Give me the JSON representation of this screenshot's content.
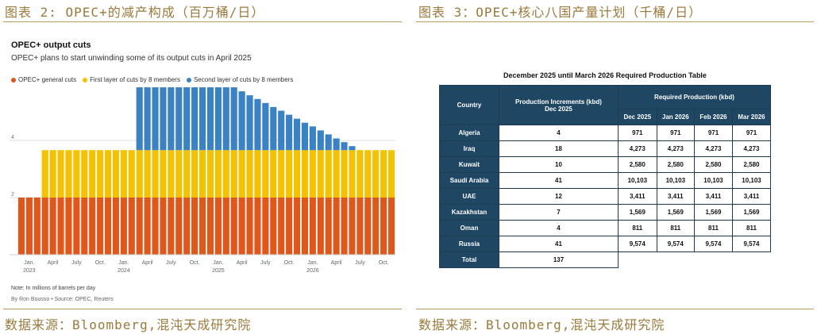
{
  "captions": {
    "left": "图表 2: OPEC+的减产构成（百万桶/日）",
    "right": "图表 3：OPEC+核心八国产量计划（千桶/日）",
    "source_left": "数据来源：Bloomberg,混沌天成研究院",
    "source_right": "数据来源：Bloomberg,混沌天成研究院"
  },
  "colors": {
    "general": "#e0571b",
    "first": "#f3c200",
    "second": "#3b82c4",
    "table_header": "#1f4764",
    "caption": "#9a7a3c"
  },
  "chart_data": [
    {
      "type": "bar",
      "stacked": true,
      "title": "OPEC+ output cuts",
      "subtitle": "OPEC+ plans to start unwinding some of its output cuts in April 2025",
      "xlabel": "",
      "ylabel": "",
      "ylim": [
        0,
        6
      ],
      "yticks": [
        2,
        4
      ],
      "grid": true,
      "legend_position": "top-left",
      "x_tick_labels": [
        "Jan.\n2023",
        "April",
        "July",
        "Oct.",
        "Jan.\n2024",
        "April",
        "July",
        "Oct.",
        "Jan.\n2025",
        "April",
        "July",
        "Oct.",
        "Jan.\n2026",
        "April",
        "July",
        "Oct."
      ],
      "x_tick_month_index": [
        0,
        3,
        6,
        9,
        12,
        15,
        18,
        21,
        24,
        27,
        30,
        33,
        36,
        39,
        42,
        45
      ],
      "start_month": "2023-01",
      "series": [
        {
          "name": "OPEC+ general cuts",
          "color": "#e0571b",
          "values": [
            2,
            2,
            2,
            2,
            2,
            2,
            2,
            2,
            2,
            2,
            2,
            2,
            2,
            2,
            2,
            2,
            2,
            2,
            2,
            2,
            2,
            2,
            2,
            2,
            2,
            2,
            2,
            2,
            2,
            2,
            2,
            2,
            2,
            2,
            2,
            2,
            2,
            2,
            2,
            2,
            2,
            2,
            2,
            2,
            2,
            2,
            2,
            2
          ]
        },
        {
          "name": "First layer of cuts by 8 members",
          "color": "#f3c200",
          "values": [
            0,
            0,
            0,
            1.66,
            1.66,
            1.66,
            1.66,
            1.66,
            1.66,
            1.66,
            1.66,
            1.66,
            1.66,
            1.66,
            1.66,
            1.66,
            1.66,
            1.66,
            1.66,
            1.66,
            1.66,
            1.66,
            1.66,
            1.66,
            1.66,
            1.66,
            1.66,
            1.66,
            1.66,
            1.66,
            1.66,
            1.66,
            1.66,
            1.66,
            1.66,
            1.66,
            1.66,
            1.66,
            1.66,
            1.66,
            1.66,
            1.66,
            1.66,
            1.66,
            1.66,
            1.66,
            1.66,
            1.66
          ]
        },
        {
          "name": "Second layer of cuts by 8 members",
          "color": "#3b82c4",
          "values": [
            0,
            0,
            0,
            0,
            0,
            0,
            0,
            0,
            0,
            0,
            0,
            0,
            0,
            0,
            0,
            2.2,
            2.2,
            2.2,
            2.2,
            2.2,
            2.2,
            2.2,
            2.2,
            2.2,
            2.2,
            2.2,
            2.2,
            2.2,
            2.06,
            1.92,
            1.79,
            1.65,
            1.51,
            1.38,
            1.24,
            1.1,
            0.96,
            0.83,
            0.69,
            0.55,
            0.41,
            0.28,
            0.14,
            0,
            0,
            0,
            0,
            0
          ]
        }
      ],
      "note": "Note: In millions of barrels per day",
      "byline": "By Ron Bousso • Source: OPEC, Reuters"
    },
    {
      "type": "table",
      "title": "December 2025 until March 2026 Required Production Table",
      "headers": {
        "country": "Country",
        "increments": "Production Increments (kbd) Dec 2025",
        "required": "Required Production (kbd)",
        "months": [
          "Dec 2025",
          "Jan 2026",
          "Feb 2026",
          "Mar 2026"
        ]
      },
      "rows": [
        {
          "country": "Algeria",
          "increment": "4",
          "values": [
            "971",
            "971",
            "971",
            "971"
          ]
        },
        {
          "country": "Iraq",
          "increment": "18",
          "values": [
            "4,273",
            "4,273",
            "4,273",
            "4,273"
          ]
        },
        {
          "country": "Kuwait",
          "increment": "10",
          "values": [
            "2,580",
            "2,580",
            "2,580",
            "2,580"
          ]
        },
        {
          "country": "Saudi Arabia",
          "increment": "41",
          "values": [
            "10,103",
            "10,103",
            "10,103",
            "10,103"
          ]
        },
        {
          "country": "UAE",
          "increment": "12",
          "values": [
            "3,411",
            "3,411",
            "3,411",
            "3,411"
          ]
        },
        {
          "country": "Kazakhstan",
          "increment": "7",
          "values": [
            "1,569",
            "1,569",
            "1,569",
            "1,569"
          ]
        },
        {
          "country": "Oman",
          "increment": "4",
          "values": [
            "811",
            "811",
            "811",
            "811"
          ]
        },
        {
          "country": "Russia",
          "increment": "41",
          "values": [
            "9,574",
            "9,574",
            "9,574",
            "9,574"
          ]
        }
      ],
      "total": {
        "label": "Total",
        "value": "137"
      }
    }
  ]
}
